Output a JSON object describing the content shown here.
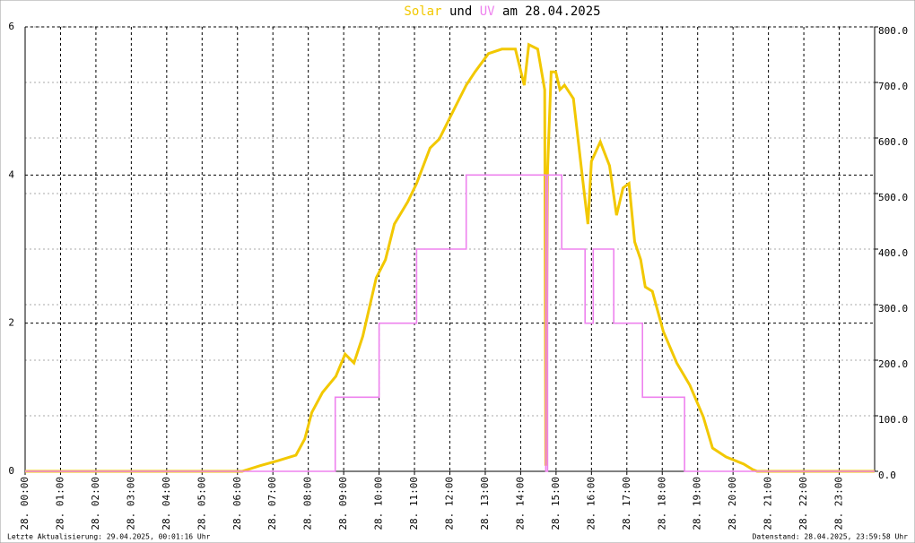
{
  "chart_data": {
    "type": "line",
    "title_parts": [
      "Solar",
      "und",
      "UV",
      "am 28.04.2025"
    ],
    "footer_left": "Letzte Aktualisierung: 29.04.2025, 00:01:16 Uhr",
    "footer_right": "Datenstand: 28.04.2025, 23:59:58 Uhr",
    "xlim": [
      0,
      24
    ],
    "xticks": [
      {
        "value": 0,
        "label": "28. 00:00"
      },
      {
        "value": 1,
        "label": "28. 01:00"
      },
      {
        "value": 2,
        "label": "28. 02:00"
      },
      {
        "value": 3,
        "label": "28. 03:00"
      },
      {
        "value": 4,
        "label": "28. 04:00"
      },
      {
        "value": 5,
        "label": "28. 05:00"
      },
      {
        "value": 6,
        "label": "28. 06:00"
      },
      {
        "value": 7,
        "label": "28. 07:00"
      },
      {
        "value": 8,
        "label": "28. 08:00"
      },
      {
        "value": 9,
        "label": "28. 09:00"
      },
      {
        "value": 10,
        "label": "28. 10:00"
      },
      {
        "value": 11,
        "label": "28. 11:00"
      },
      {
        "value": 12,
        "label": "28. 12:00"
      },
      {
        "value": 13,
        "label": "28. 13:00"
      },
      {
        "value": 14,
        "label": "28. 14:00"
      },
      {
        "value": 15,
        "label": "28. 15:00"
      },
      {
        "value": 16,
        "label": "28. 16:00"
      },
      {
        "value": 17,
        "label": "28. 17:00"
      },
      {
        "value": 18,
        "label": "28. 18:00"
      },
      {
        "value": 19,
        "label": "28. 19:00"
      },
      {
        "value": 20,
        "label": "28. 20:00"
      },
      {
        "value": 21,
        "label": "28. 21:00"
      },
      {
        "value": 22,
        "label": "28. 22:00"
      },
      {
        "value": 23,
        "label": "28. 23:00"
      }
    ],
    "ylim": [
      0,
      6
    ],
    "yticks": [
      0,
      2,
      4,
      6
    ],
    "y2lim": [
      0,
      800
    ],
    "y2ticks": [
      {
        "value": 0,
        "label": "0.0"
      },
      {
        "value": 100,
        "label": "100.0"
      },
      {
        "value": 200,
        "label": "200.0"
      },
      {
        "value": 300,
        "label": "300.0"
      },
      {
        "value": 400,
        "label": "400.0"
      },
      {
        "value": 500,
        "label": "500.0"
      },
      {
        "value": 600,
        "label": "600.0"
      },
      {
        "value": 700,
        "label": "700.0"
      },
      {
        "value": 800,
        "label": "800.0"
      }
    ],
    "grid": true,
    "series": [
      {
        "name": "Solar",
        "color": "#f2c800",
        "axis": "y2",
        "x": [
          0,
          6.13,
          6.63,
          7.14,
          7.65,
          7.9,
          8.1,
          8.4,
          8.78,
          9.04,
          9.29,
          9.54,
          9.92,
          10.18,
          10.43,
          10.81,
          11.06,
          11.44,
          11.7,
          12.08,
          12.46,
          12.71,
          13.09,
          13.47,
          13.85,
          14.1,
          14.23,
          14.48,
          14.68,
          14.71,
          14.76,
          14.86,
          14.99,
          15.11,
          15.24,
          15.49,
          15.75,
          15.9,
          16.0,
          16.25,
          16.51,
          16.71,
          16.89,
          17.06,
          17.22,
          17.39,
          17.52,
          17.72,
          18.03,
          18.41,
          18.78,
          19.16,
          19.42,
          19.8,
          20.3,
          20.56,
          20.68,
          24
        ],
        "values": [
          0,
          0,
          10,
          19,
          29,
          58,
          106,
          142,
          171,
          211,
          195,
          243,
          348,
          381,
          445,
          485,
          518,
          582,
          598,
          647,
          695,
          719,
          752,
          760,
          760,
          695,
          768,
          760,
          687,
          10,
          542,
          719,
          719,
          687,
          695,
          671,
          526,
          445,
          558,
          593,
          550,
          461,
          510,
          518,
          413,
          381,
          332,
          324,
          252,
          195,
          155,
          98,
          42,
          26,
          13,
          3,
          0,
          0
        ]
      },
      {
        "name": "UV",
        "color": "#ee82ee",
        "axis": "y",
        "x": [
          0,
          8.76,
          8.76,
          10.0,
          10.0,
          11.06,
          11.06,
          12.46,
          12.46,
          14.71,
          14.71,
          14.76,
          14.76,
          15.16,
          15.16,
          15.82,
          15.82,
          16.05,
          16.05,
          16.63,
          16.63,
          17.44,
          17.44,
          18.63,
          18.63,
          24
        ],
        "values": [
          0,
          0,
          1,
          1,
          2,
          2,
          3,
          3,
          4,
          4,
          0,
          0,
          4,
          4,
          3,
          3,
          2,
          2,
          3,
          3,
          2,
          2,
          1,
          1,
          0,
          0
        ]
      }
    ]
  }
}
